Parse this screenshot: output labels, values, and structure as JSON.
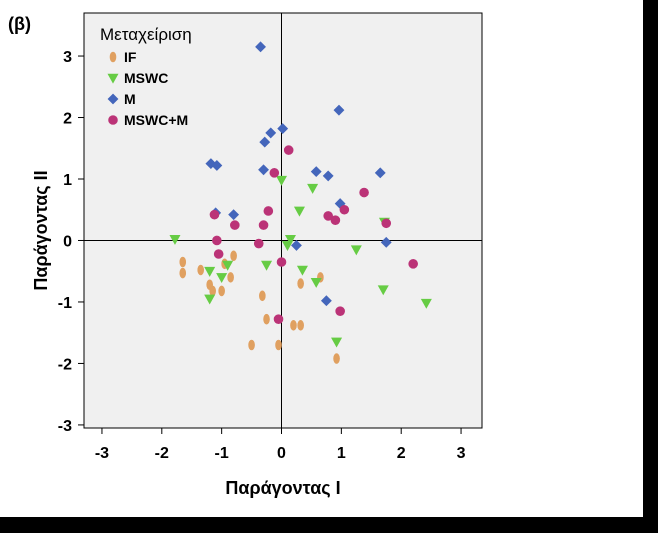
{
  "panel_label": "(β)",
  "chart_data": {
    "type": "scatter",
    "xlabel": "Παράγοντας I",
    "ylabel": "Παράγοντας II",
    "xlim": [
      -3.3,
      3.35
    ],
    "ylim": [
      -3.05,
      3.7
    ],
    "x_ticks": [
      -3,
      -2,
      -1,
      0,
      1,
      2,
      3
    ],
    "y_ticks": [
      -3,
      -2,
      -1,
      0,
      1,
      2,
      3
    ],
    "reference_lines": {
      "x": 0,
      "y": 0
    },
    "plot_background": "#f0f0f0",
    "grid": false,
    "legend": {
      "title": "Μεταχείριση",
      "position": "top-left"
    },
    "series": [
      {
        "name": "IF",
        "marker": "ellipse",
        "color": "#e0a060",
        "points": [
          [
            -1.65,
            -0.35
          ],
          [
            -1.65,
            -0.53
          ],
          [
            -1.35,
            -0.48
          ],
          [
            -1.2,
            -0.72
          ],
          [
            -1.15,
            -0.82
          ],
          [
            -1.0,
            -0.82
          ],
          [
            -0.95,
            -0.38
          ],
          [
            -0.85,
            -0.6
          ],
          [
            -0.8,
            -0.25
          ],
          [
            -0.32,
            -0.9
          ],
          [
            -0.25,
            -1.28
          ],
          [
            -0.5,
            -1.7
          ],
          [
            -0.05,
            -1.7
          ],
          [
            0.2,
            -1.38
          ],
          [
            0.32,
            -1.38
          ],
          [
            0.32,
            -0.7
          ],
          [
            0.65,
            -0.6
          ],
          [
            0.92,
            -1.92
          ]
        ]
      },
      {
        "name": "MSWC",
        "marker": "triangle-down",
        "color": "#66cc44",
        "points": [
          [
            -1.78,
            0.02
          ],
          [
            -1.2,
            -0.5
          ],
          [
            -1.2,
            -0.95
          ],
          [
            -1.0,
            -0.6
          ],
          [
            -0.9,
            -0.4
          ],
          [
            -0.25,
            -0.4
          ],
          [
            0.0,
            0.98
          ],
          [
            0.1,
            -0.08
          ],
          [
            0.15,
            0.02
          ],
          [
            0.3,
            0.48
          ],
          [
            0.35,
            -0.48
          ],
          [
            0.52,
            0.85
          ],
          [
            0.58,
            -0.68
          ],
          [
            0.92,
            -1.65
          ],
          [
            1.25,
            -0.15
          ],
          [
            1.7,
            -0.8
          ],
          [
            1.72,
            0.3
          ],
          [
            2.42,
            -1.02
          ]
        ]
      },
      {
        "name": "M",
        "marker": "diamond",
        "color": "#4466bb",
        "points": [
          [
            -0.35,
            3.15
          ],
          [
            -1.18,
            1.25
          ],
          [
            -1.08,
            1.22
          ],
          [
            -1.1,
            0.45
          ],
          [
            -0.8,
            0.42
          ],
          [
            -0.3,
            1.15
          ],
          [
            -0.28,
            1.6
          ],
          [
            -0.18,
            1.75
          ],
          [
            0.02,
            1.82
          ],
          [
            0.58,
            1.12
          ],
          [
            0.78,
            1.05
          ],
          [
            0.96,
            2.12
          ],
          [
            0.98,
            0.6
          ],
          [
            1.65,
            1.1
          ],
          [
            0.25,
            -0.08
          ],
          [
            0.75,
            -0.98
          ],
          [
            1.75,
            -0.03
          ]
        ]
      },
      {
        "name": "MSWC+M",
        "marker": "circle",
        "color": "#bb3377",
        "points": [
          [
            -1.12,
            0.42
          ],
          [
            -1.08,
            0.0
          ],
          [
            -1.05,
            -0.22
          ],
          [
            -0.78,
            0.25
          ],
          [
            -0.38,
            -0.05
          ],
          [
            -0.3,
            0.25
          ],
          [
            -0.22,
            0.48
          ],
          [
            -0.12,
            1.1
          ],
          [
            0.12,
            1.47
          ],
          [
            -0.05,
            -1.28
          ],
          [
            0.0,
            -0.35
          ],
          [
            0.78,
            0.4
          ],
          [
            0.9,
            0.33
          ],
          [
            1.05,
            0.5
          ],
          [
            1.38,
            0.78
          ],
          [
            1.75,
            0.28
          ],
          [
            2.2,
            -0.38
          ],
          [
            0.98,
            -1.15
          ]
        ]
      }
    ]
  }
}
